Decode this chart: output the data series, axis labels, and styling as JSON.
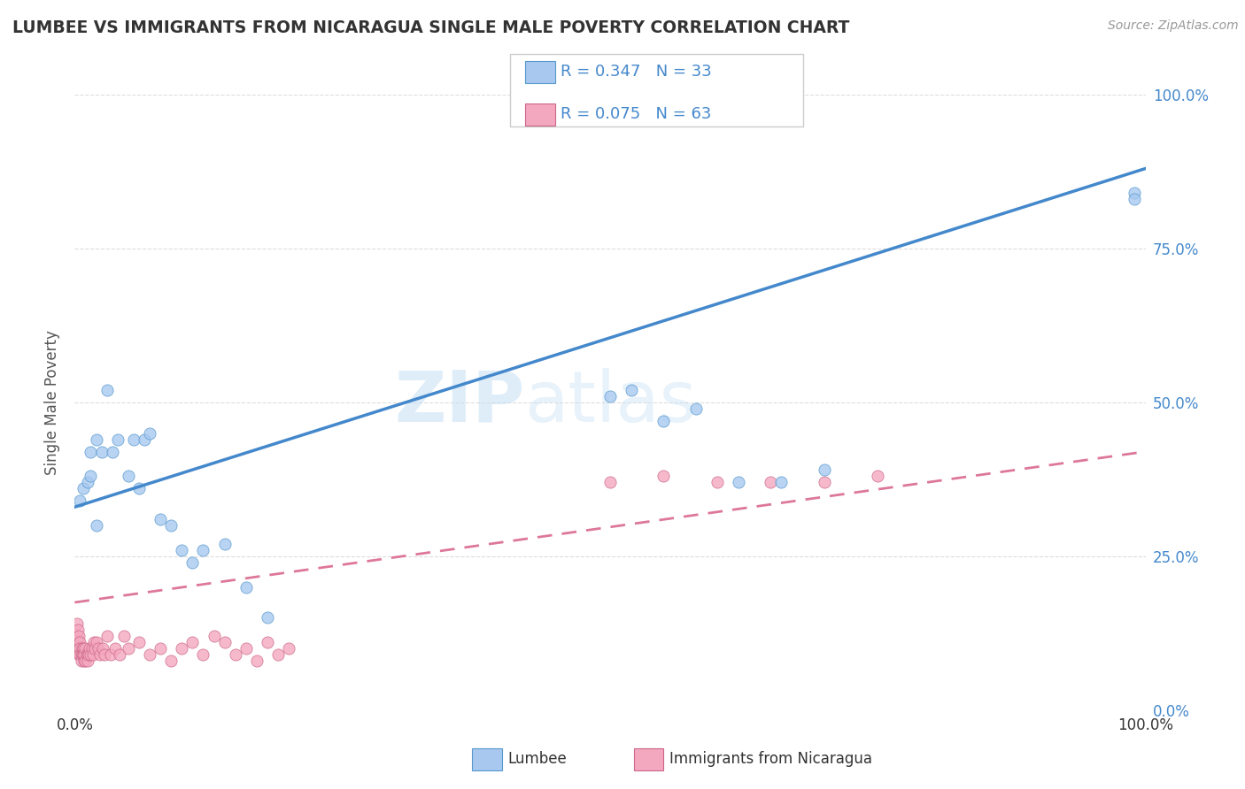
{
  "title": "LUMBEE VS IMMIGRANTS FROM NICARAGUA SINGLE MALE POVERTY CORRELATION CHART",
  "source": "Source: ZipAtlas.com",
  "ylabel": "Single Male Poverty",
  "xlim": [
    0,
    1
  ],
  "ylim": [
    0,
    1
  ],
  "lumbee_color": "#a8c8f0",
  "lumbee_edge_color": "#5599cc",
  "nicaragua_color": "#f4a8c0",
  "nicaragua_edge_color": "#cc6688",
  "lumbee_line_color": "#4488cc",
  "nicaragua_line_color": "#dd7799",
  "R_lumbee": "R = 0.347",
  "N_lumbee": "N = 33",
  "R_nicaragua": "R = 0.075",
  "N_nicaragua": "N = 63",
  "lumbee_scatter_x": [
    0.005,
    0.008,
    0.012,
    0.015,
    0.015,
    0.02,
    0.02,
    0.025,
    0.03,
    0.035,
    0.04,
    0.05,
    0.055,
    0.06,
    0.065,
    0.07,
    0.08,
    0.09,
    0.1,
    0.11,
    0.12,
    0.14,
    0.16,
    0.18,
    0.5,
    0.52,
    0.55,
    0.58,
    0.62,
    0.66,
    0.7,
    0.99,
    0.99
  ],
  "lumbee_scatter_y": [
    0.34,
    0.36,
    0.37,
    0.38,
    0.42,
    0.3,
    0.44,
    0.42,
    0.52,
    0.42,
    0.44,
    0.38,
    0.44,
    0.36,
    0.44,
    0.45,
    0.31,
    0.3,
    0.26,
    0.24,
    0.26,
    0.27,
    0.2,
    0.15,
    0.51,
    0.52,
    0.47,
    0.49,
    0.37,
    0.37,
    0.39,
    0.84,
    0.83
  ],
  "nicaragua_scatter_x": [
    0.002,
    0.002,
    0.003,
    0.003,
    0.003,
    0.004,
    0.004,
    0.004,
    0.005,
    0.005,
    0.005,
    0.006,
    0.006,
    0.007,
    0.007,
    0.008,
    0.008,
    0.009,
    0.009,
    0.01,
    0.01,
    0.011,
    0.012,
    0.012,
    0.013,
    0.014,
    0.015,
    0.016,
    0.017,
    0.018,
    0.019,
    0.02,
    0.022,
    0.024,
    0.026,
    0.028,
    0.03,
    0.034,
    0.038,
    0.042,
    0.046,
    0.05,
    0.06,
    0.07,
    0.08,
    0.09,
    0.1,
    0.11,
    0.12,
    0.13,
    0.14,
    0.15,
    0.16,
    0.17,
    0.18,
    0.19,
    0.2,
    0.5,
    0.55,
    0.6,
    0.65,
    0.7,
    0.75
  ],
  "nicaragua_scatter_y": [
    0.14,
    0.12,
    0.13,
    0.11,
    0.1,
    0.12,
    0.1,
    0.09,
    0.11,
    0.1,
    0.09,
    0.09,
    0.08,
    0.1,
    0.09,
    0.1,
    0.09,
    0.08,
    0.09,
    0.1,
    0.08,
    0.09,
    0.09,
    0.08,
    0.09,
    0.1,
    0.09,
    0.1,
    0.09,
    0.11,
    0.1,
    0.11,
    0.1,
    0.09,
    0.1,
    0.09,
    0.12,
    0.09,
    0.1,
    0.09,
    0.12,
    0.1,
    0.11,
    0.09,
    0.1,
    0.08,
    0.1,
    0.11,
    0.09,
    0.12,
    0.11,
    0.09,
    0.1,
    0.08,
    0.11,
    0.09,
    0.1,
    0.37,
    0.38,
    0.37,
    0.37,
    0.37,
    0.38
  ],
  "lumbee_line_x0": 0.0,
  "lumbee_line_y0": 0.33,
  "lumbee_line_x1": 1.0,
  "lumbee_line_y1": 0.88,
  "nicaragua_line_x0": 0.0,
  "nicaragua_line_y0": 0.175,
  "nicaragua_line_x1": 1.0,
  "nicaragua_line_y1": 0.42,
  "watermark_zip": "ZIP",
  "watermark_atlas": "atlas",
  "background_color": "#ffffff",
  "grid_color": "#dddddd",
  "title_color": "#333333",
  "source_color": "#999999",
  "axis_color": "#4488cc",
  "ylabel_color": "#555555"
}
